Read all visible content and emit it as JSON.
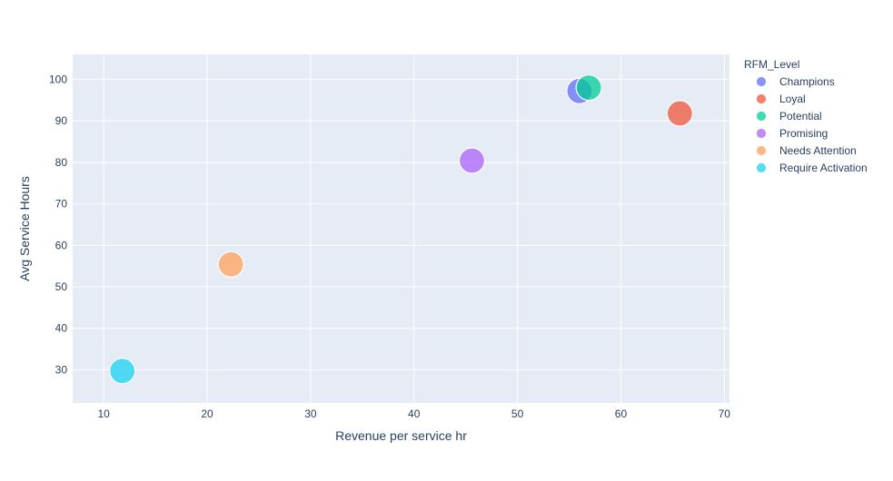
{
  "chart_data": {
    "type": "scatter",
    "title": "",
    "xlabel": "Revenue per service hr",
    "ylabel": "Avg Service Hours",
    "xlim": [
      7,
      70.5
    ],
    "ylim": [
      22,
      106
    ],
    "x_ticks": [
      10,
      20,
      30,
      40,
      50,
      60,
      70
    ],
    "y_ticks": [
      30,
      40,
      50,
      60,
      70,
      80,
      90,
      100
    ],
    "grid": true,
    "legend_title": "RFM_Level",
    "legend_position": "right",
    "series": [
      {
        "name": "Champions",
        "color": "#636efa",
        "points": [
          {
            "x": 56.0,
            "y": 97.2
          }
        ]
      },
      {
        "name": "Loyal",
        "color": "#ef553b",
        "points": [
          {
            "x": 65.7,
            "y": 91.8
          }
        ]
      },
      {
        "name": "Potential",
        "color": "#00cc96",
        "points": [
          {
            "x": 56.9,
            "y": 98.0
          }
        ]
      },
      {
        "name": "Promising",
        "color": "#ab63fa",
        "points": [
          {
            "x": 45.6,
            "y": 80.4
          }
        ]
      },
      {
        "name": "Needs Attention",
        "color": "#ffa15a",
        "points": [
          {
            "x": 22.3,
            "y": 55.4
          }
        ]
      },
      {
        "name": "Require Activation",
        "color": "#19d3f3",
        "points": [
          {
            "x": 11.8,
            "y": 29.7
          }
        ]
      }
    ]
  }
}
